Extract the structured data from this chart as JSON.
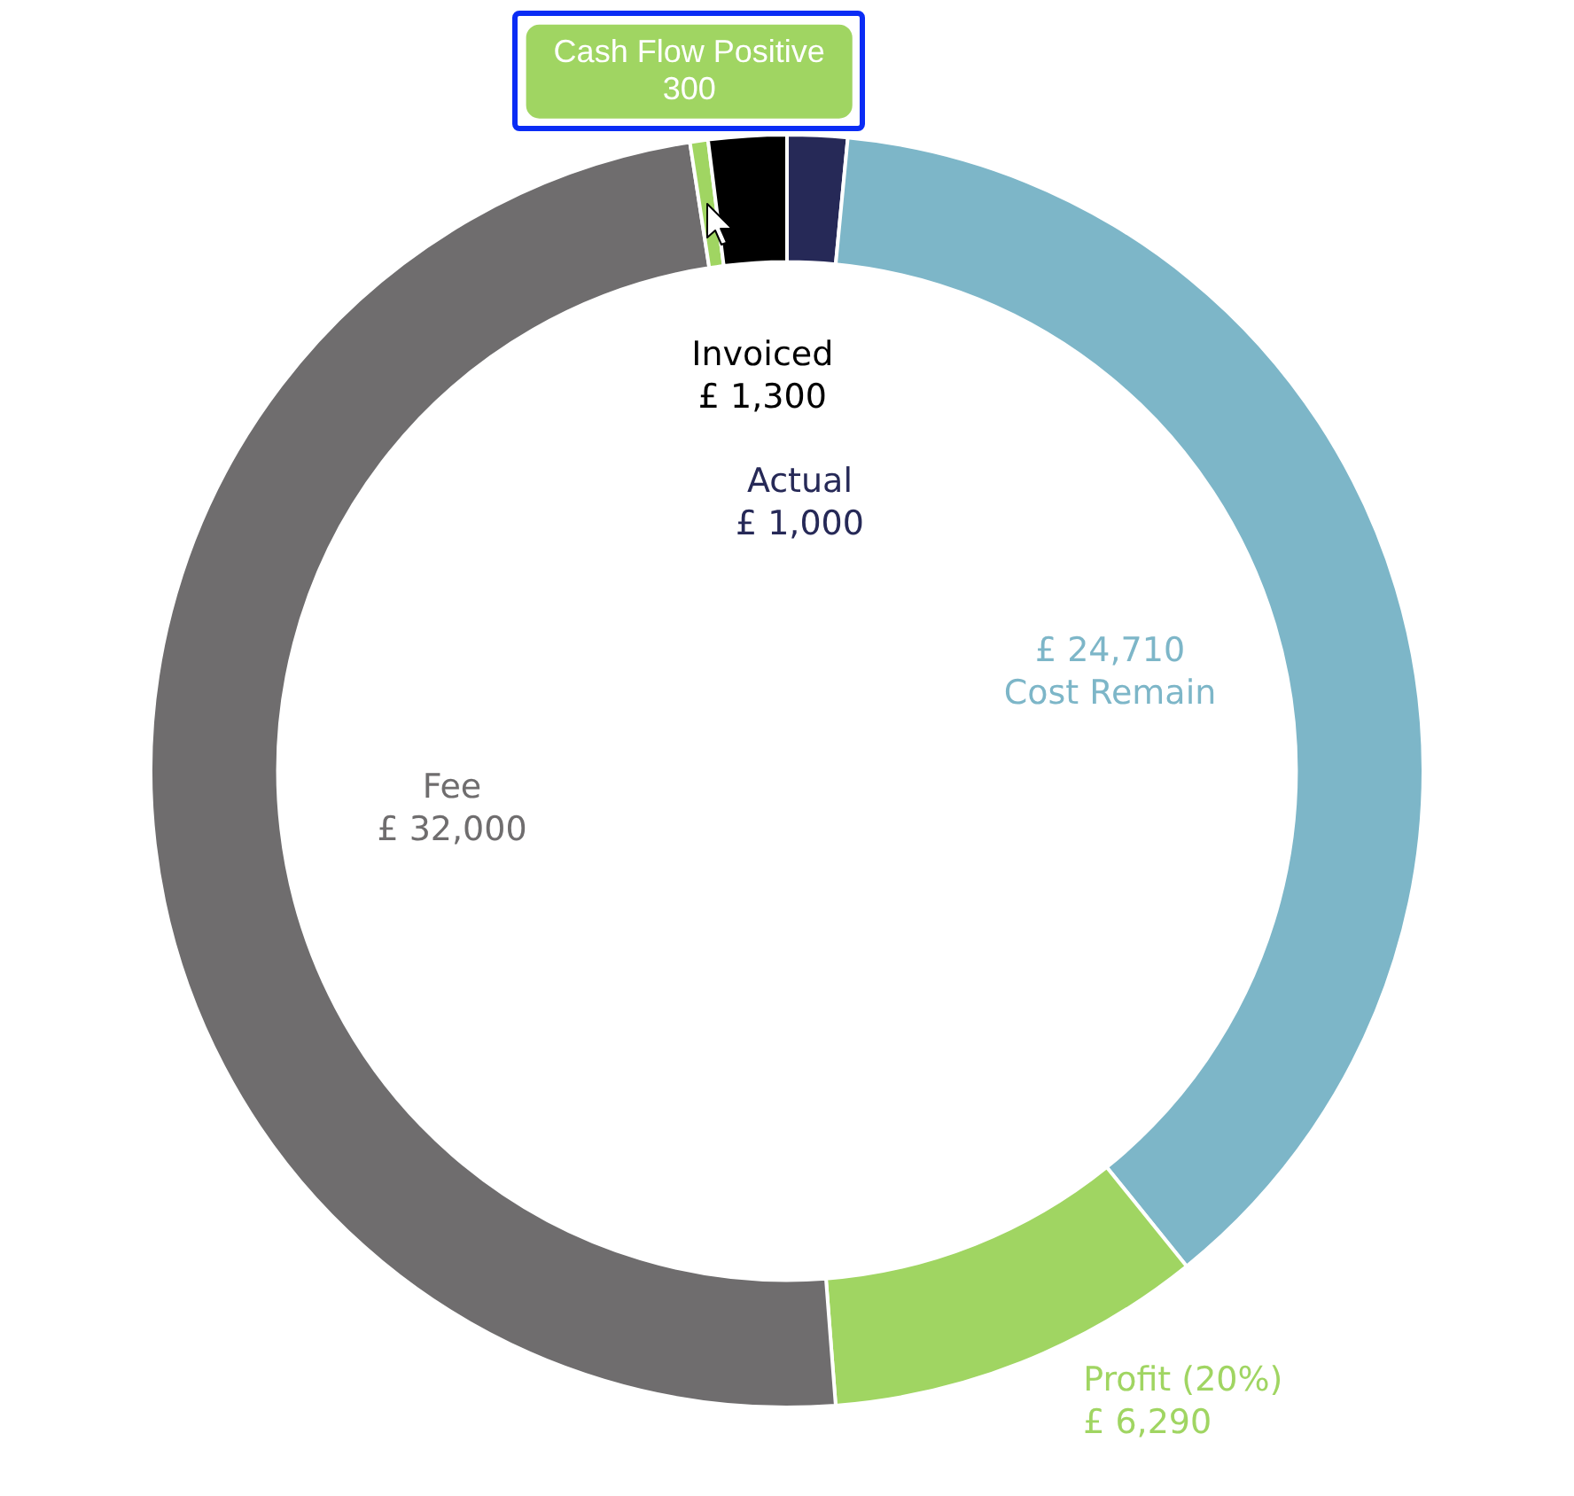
{
  "chart_data": {
    "type": "donut",
    "categories": [
      "Actual",
      "Cost Remain",
      "Profit (20%)",
      "Fee",
      "Cash Flow Positive",
      "Invoiced"
    ],
    "values": [
      1000,
      24710,
      6290,
      32000,
      300,
      1300
    ],
    "colors": [
      "#262957",
      "#7db6c8",
      "#a0d562",
      "#6f6d6e",
      "#a0d562",
      "#000000"
    ],
    "value_labels": [
      "£ 1,000",
      "£ 24,710",
      "£ 6,290",
      "£ 32,000",
      "300",
      "£ 1,300"
    ]
  }
}
